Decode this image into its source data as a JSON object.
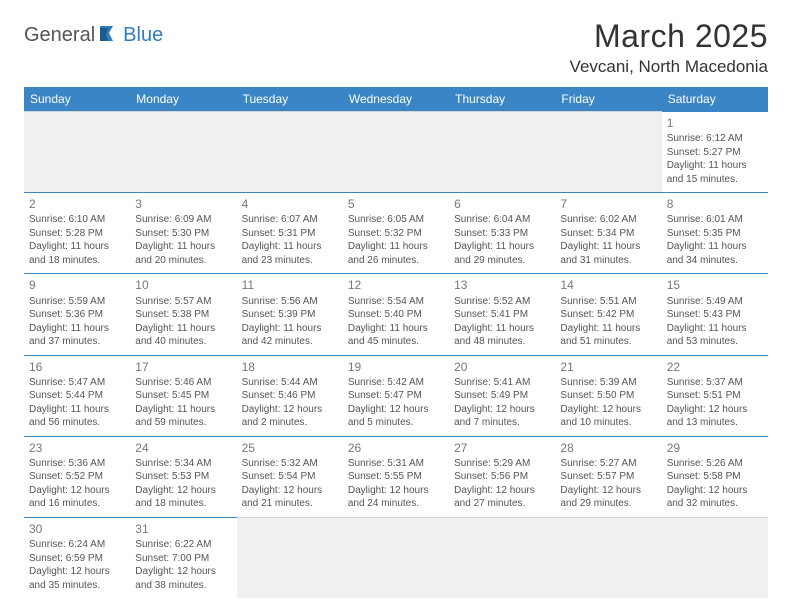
{
  "logo": {
    "part1": "General",
    "part2": "Blue"
  },
  "title": "March 2025",
  "location": "Vevcani, North Macedonia",
  "colors": {
    "header_bg": "#3a85c6",
    "header_text": "#ffffff",
    "cell_border": "#3a85c6",
    "empty_bg": "#f0f0f0",
    "text": "#555555",
    "daynum": "#777777",
    "logo_gray": "#555555",
    "logo_blue": "#2f7ec0"
  },
  "day_headers": [
    "Sunday",
    "Monday",
    "Tuesday",
    "Wednesday",
    "Thursday",
    "Friday",
    "Saturday"
  ],
  "weeks": [
    [
      null,
      null,
      null,
      null,
      null,
      null,
      {
        "n": "1",
        "sr": "Sunrise: 6:12 AM",
        "ss": "Sunset: 5:27 PM",
        "d1": "Daylight: 11 hours",
        "d2": "and 15 minutes."
      }
    ],
    [
      {
        "n": "2",
        "sr": "Sunrise: 6:10 AM",
        "ss": "Sunset: 5:28 PM",
        "d1": "Daylight: 11 hours",
        "d2": "and 18 minutes."
      },
      {
        "n": "3",
        "sr": "Sunrise: 6:09 AM",
        "ss": "Sunset: 5:30 PM",
        "d1": "Daylight: 11 hours",
        "d2": "and 20 minutes."
      },
      {
        "n": "4",
        "sr": "Sunrise: 6:07 AM",
        "ss": "Sunset: 5:31 PM",
        "d1": "Daylight: 11 hours",
        "d2": "and 23 minutes."
      },
      {
        "n": "5",
        "sr": "Sunrise: 6:05 AM",
        "ss": "Sunset: 5:32 PM",
        "d1": "Daylight: 11 hours",
        "d2": "and 26 minutes."
      },
      {
        "n": "6",
        "sr": "Sunrise: 6:04 AM",
        "ss": "Sunset: 5:33 PM",
        "d1": "Daylight: 11 hours",
        "d2": "and 29 minutes."
      },
      {
        "n": "7",
        "sr": "Sunrise: 6:02 AM",
        "ss": "Sunset: 5:34 PM",
        "d1": "Daylight: 11 hours",
        "d2": "and 31 minutes."
      },
      {
        "n": "8",
        "sr": "Sunrise: 6:01 AM",
        "ss": "Sunset: 5:35 PM",
        "d1": "Daylight: 11 hours",
        "d2": "and 34 minutes."
      }
    ],
    [
      {
        "n": "9",
        "sr": "Sunrise: 5:59 AM",
        "ss": "Sunset: 5:36 PM",
        "d1": "Daylight: 11 hours",
        "d2": "and 37 minutes."
      },
      {
        "n": "10",
        "sr": "Sunrise: 5:57 AM",
        "ss": "Sunset: 5:38 PM",
        "d1": "Daylight: 11 hours",
        "d2": "and 40 minutes."
      },
      {
        "n": "11",
        "sr": "Sunrise: 5:56 AM",
        "ss": "Sunset: 5:39 PM",
        "d1": "Daylight: 11 hours",
        "d2": "and 42 minutes."
      },
      {
        "n": "12",
        "sr": "Sunrise: 5:54 AM",
        "ss": "Sunset: 5:40 PM",
        "d1": "Daylight: 11 hours",
        "d2": "and 45 minutes."
      },
      {
        "n": "13",
        "sr": "Sunrise: 5:52 AM",
        "ss": "Sunset: 5:41 PM",
        "d1": "Daylight: 11 hours",
        "d2": "and 48 minutes."
      },
      {
        "n": "14",
        "sr": "Sunrise: 5:51 AM",
        "ss": "Sunset: 5:42 PM",
        "d1": "Daylight: 11 hours",
        "d2": "and 51 minutes."
      },
      {
        "n": "15",
        "sr": "Sunrise: 5:49 AM",
        "ss": "Sunset: 5:43 PM",
        "d1": "Daylight: 11 hours",
        "d2": "and 53 minutes."
      }
    ],
    [
      {
        "n": "16",
        "sr": "Sunrise: 5:47 AM",
        "ss": "Sunset: 5:44 PM",
        "d1": "Daylight: 11 hours",
        "d2": "and 56 minutes."
      },
      {
        "n": "17",
        "sr": "Sunrise: 5:46 AM",
        "ss": "Sunset: 5:45 PM",
        "d1": "Daylight: 11 hours",
        "d2": "and 59 minutes."
      },
      {
        "n": "18",
        "sr": "Sunrise: 5:44 AM",
        "ss": "Sunset: 5:46 PM",
        "d1": "Daylight: 12 hours",
        "d2": "and 2 minutes."
      },
      {
        "n": "19",
        "sr": "Sunrise: 5:42 AM",
        "ss": "Sunset: 5:47 PM",
        "d1": "Daylight: 12 hours",
        "d2": "and 5 minutes."
      },
      {
        "n": "20",
        "sr": "Sunrise: 5:41 AM",
        "ss": "Sunset: 5:49 PM",
        "d1": "Daylight: 12 hours",
        "d2": "and 7 minutes."
      },
      {
        "n": "21",
        "sr": "Sunrise: 5:39 AM",
        "ss": "Sunset: 5:50 PM",
        "d1": "Daylight: 12 hours",
        "d2": "and 10 minutes."
      },
      {
        "n": "22",
        "sr": "Sunrise: 5:37 AM",
        "ss": "Sunset: 5:51 PM",
        "d1": "Daylight: 12 hours",
        "d2": "and 13 minutes."
      }
    ],
    [
      {
        "n": "23",
        "sr": "Sunrise: 5:36 AM",
        "ss": "Sunset: 5:52 PM",
        "d1": "Daylight: 12 hours",
        "d2": "and 16 minutes."
      },
      {
        "n": "24",
        "sr": "Sunrise: 5:34 AM",
        "ss": "Sunset: 5:53 PM",
        "d1": "Daylight: 12 hours",
        "d2": "and 18 minutes."
      },
      {
        "n": "25",
        "sr": "Sunrise: 5:32 AM",
        "ss": "Sunset: 5:54 PM",
        "d1": "Daylight: 12 hours",
        "d2": "and 21 minutes."
      },
      {
        "n": "26",
        "sr": "Sunrise: 5:31 AM",
        "ss": "Sunset: 5:55 PM",
        "d1": "Daylight: 12 hours",
        "d2": "and 24 minutes."
      },
      {
        "n": "27",
        "sr": "Sunrise: 5:29 AM",
        "ss": "Sunset: 5:56 PM",
        "d1": "Daylight: 12 hours",
        "d2": "and 27 minutes."
      },
      {
        "n": "28",
        "sr": "Sunrise: 5:27 AM",
        "ss": "Sunset: 5:57 PM",
        "d1": "Daylight: 12 hours",
        "d2": "and 29 minutes."
      },
      {
        "n": "29",
        "sr": "Sunrise: 5:26 AM",
        "ss": "Sunset: 5:58 PM",
        "d1": "Daylight: 12 hours",
        "d2": "and 32 minutes."
      }
    ],
    [
      {
        "n": "30",
        "sr": "Sunrise: 6:24 AM",
        "ss": "Sunset: 6:59 PM",
        "d1": "Daylight: 12 hours",
        "d2": "and 35 minutes."
      },
      {
        "n": "31",
        "sr": "Sunrise: 6:22 AM",
        "ss": "Sunset: 7:00 PM",
        "d1": "Daylight: 12 hours",
        "d2": "and 38 minutes."
      },
      null,
      null,
      null,
      null,
      null
    ]
  ]
}
